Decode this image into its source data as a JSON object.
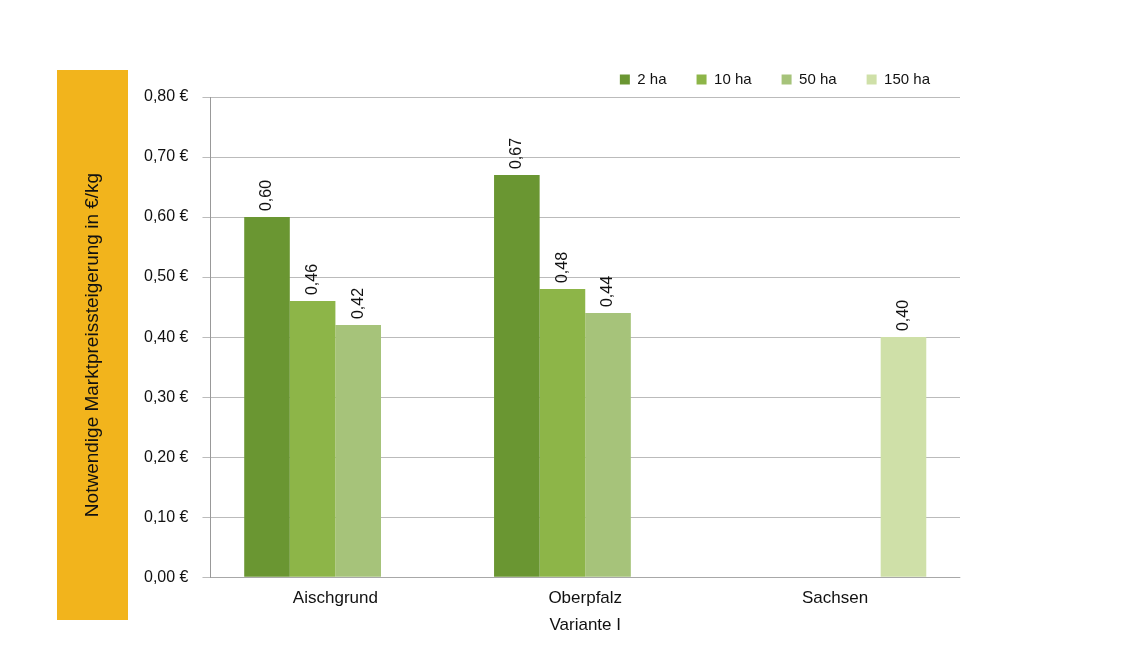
{
  "chart_data": {
    "type": "bar",
    "xlabel": "Variante I",
    "ylabel": "Notwendige Marktpreissteigerung in €/kg",
    "categories": [
      "Aischgrund",
      "Oberpfalz",
      "Sachsen"
    ],
    "series": [
      {
        "name": "2 ha",
        "color": "#6a9632",
        "values": [
          0.6,
          0.67,
          null
        ],
        "value_labels": [
          "0,60",
          "0,67",
          null
        ]
      },
      {
        "name": "10 ha",
        "color": "#8db548",
        "values": [
          0.46,
          0.48,
          null
        ],
        "value_labels": [
          "0,46",
          "0,48",
          null
        ]
      },
      {
        "name": "50 ha",
        "color": "#a6c37a",
        "values": [
          0.42,
          0.44,
          null
        ],
        "value_labels": [
          "0,42",
          "0,44",
          null
        ]
      },
      {
        "name": "150 ha",
        "color": "#cfe0a8",
        "values": [
          null,
          null,
          0.4
        ],
        "value_labels": [
          null,
          null,
          "0,40"
        ]
      }
    ],
    "ylim": [
      0,
      0.8
    ],
    "yticks": [
      {
        "value": 0,
        "label": "0,00 €"
      },
      {
        "value": 0.1,
        "label": "0,10 €"
      },
      {
        "value": 0.2,
        "label": "0,20 €"
      },
      {
        "value": 0.3,
        "label": "0,30 €"
      },
      {
        "value": 0.4,
        "label": "0,40 €"
      },
      {
        "value": 0.5,
        "label": "0,50 €"
      },
      {
        "value": 0.6,
        "label": "0,60 €"
      },
      {
        "value": 0.7,
        "label": "0,70 €"
      },
      {
        "value": 0.8,
        "label": "0,80 €"
      }
    ],
    "grid": "y",
    "legend": "top right"
  }
}
